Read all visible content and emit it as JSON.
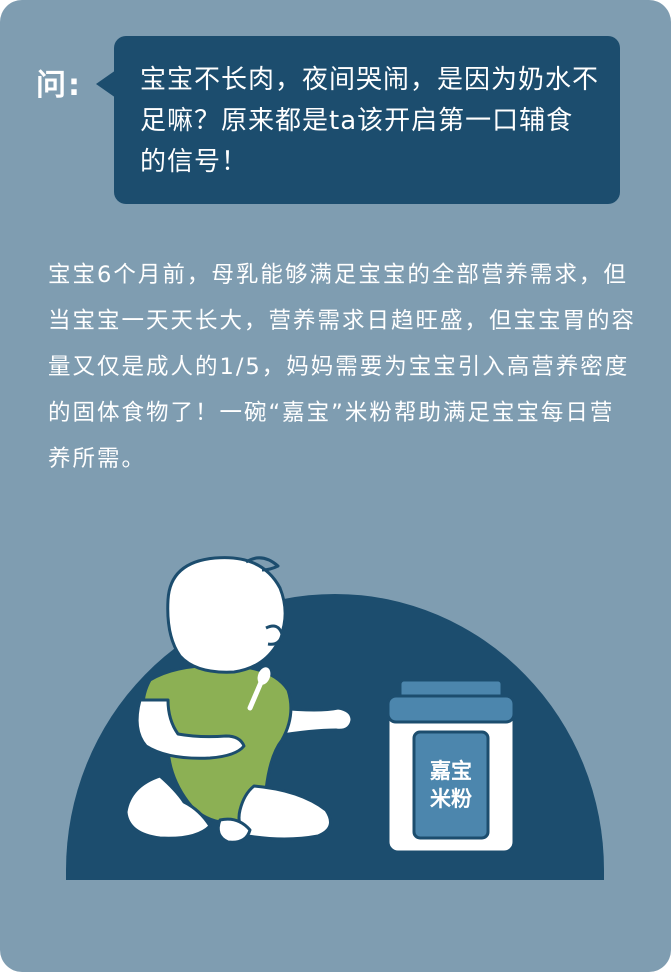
{
  "question": {
    "label": "问:",
    "text": "宝宝不长肉，夜间哭闹，是因为奶水不足嘛？原来都是ta该开启第一口辅食的信号！"
  },
  "answer": {
    "text": "宝宝6个月前，母乳能够满足宝宝的全部营养需求，但当宝宝一天天长大，营养需求日趋旺盛，但宝宝胃的容量又仅是成人的1/5，妈妈需要为宝宝引入高营养密度的固体食物了！一碗“嘉宝”米粉帮助满足宝宝每日营养所需。"
  },
  "jar": {
    "label_line1": "嘉宝",
    "label_line2": "米粉"
  },
  "colors": {
    "background": "#7f9db1",
    "bubble": "#1c4d6e",
    "dome": "#1c4d6e",
    "onesie": "#8cb054",
    "jar_lid": "#4c86ad",
    "text": "#ffffff"
  }
}
